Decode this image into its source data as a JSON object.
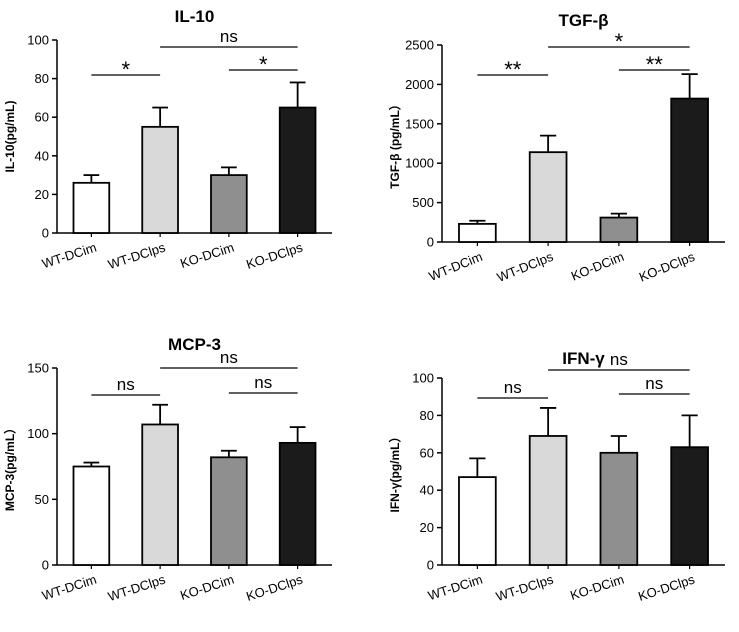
{
  "colors": {
    "bar_white": "#ffffff",
    "bar_light": "#d9d9d9",
    "bar_mid": "#8f8f8f",
    "bar_dark": "#1b1b1b",
    "axis": "#000000"
  },
  "chart_data": [
    {
      "type": "bar",
      "title": "IL-10",
      "ylabel": "IL-10(pg/mL)",
      "ylim": [
        0,
        100
      ],
      "yticks": [
        "0",
        "20",
        "40",
        "60",
        "80",
        "100"
      ],
      "categories": [
        "WT-DCim",
        "WT-DClps",
        "KO-DCim",
        "KO-DClps"
      ],
      "values": [
        26,
        55,
        30,
        65
      ],
      "errors": [
        4,
        10,
        4,
        13
      ],
      "significance": [
        {
          "from": 0,
          "to": 1,
          "label": "*"
        },
        {
          "from": 1,
          "to": 3,
          "label": "ns"
        },
        {
          "from": 2,
          "to": 3,
          "label": "*"
        }
      ]
    },
    {
      "type": "bar",
      "title": "TGF-β",
      "ylabel": "TGF-β (pg/mL）",
      "ylim": [
        0,
        2500
      ],
      "yticks": [
        "0",
        "500",
        "1000",
        "1500",
        "2000",
        "2500"
      ],
      "categories": [
        "WT-DCim",
        "WT-DClps",
        "KO-DCim",
        "KO-DClps"
      ],
      "values": [
        230,
        1140,
        310,
        1820
      ],
      "errors": [
        40,
        210,
        50,
        310
      ],
      "significance": [
        {
          "from": 0,
          "to": 1,
          "label": "**"
        },
        {
          "from": 1,
          "to": 3,
          "label": "*"
        },
        {
          "from": 2,
          "to": 3,
          "label": "**"
        }
      ]
    },
    {
      "type": "bar",
      "title": "MCP-3",
      "ylabel": "MCP-3(pg/mL）",
      "ylim": [
        0,
        150
      ],
      "yticks": [
        "0",
        "50",
        "100",
        "150"
      ],
      "categories": [
        "WT-DCim",
        "WT-DClps",
        "KO-DCim",
        "KO-DClps"
      ],
      "values": [
        75,
        107,
        82,
        93
      ],
      "errors": [
        3,
        15,
        5,
        12
      ],
      "significance": [
        {
          "from": 0,
          "to": 1,
          "label": "ns"
        },
        {
          "from": 1,
          "to": 3,
          "label": "ns"
        },
        {
          "from": 2,
          "to": 3,
          "label": "ns"
        }
      ]
    },
    {
      "type": "bar",
      "title": "IFN-γ",
      "ylabel": "IFN-γ(pg/mL）",
      "ylim": [
        0,
        100
      ],
      "yticks": [
        "0",
        "20",
        "40",
        "60",
        "80",
        "100"
      ],
      "categories": [
        "WT-DCim",
        "WT-DClps",
        "KO-DCim",
        "KO-DClps"
      ],
      "values": [
        47,
        69,
        60,
        63
      ],
      "errors": [
        10,
        15,
        9,
        17
      ],
      "significance": [
        {
          "from": 0,
          "to": 1,
          "label": "ns"
        },
        {
          "from": 1,
          "to": 3,
          "label": "ns"
        },
        {
          "from": 2,
          "to": 3,
          "label": "ns"
        }
      ]
    }
  ]
}
